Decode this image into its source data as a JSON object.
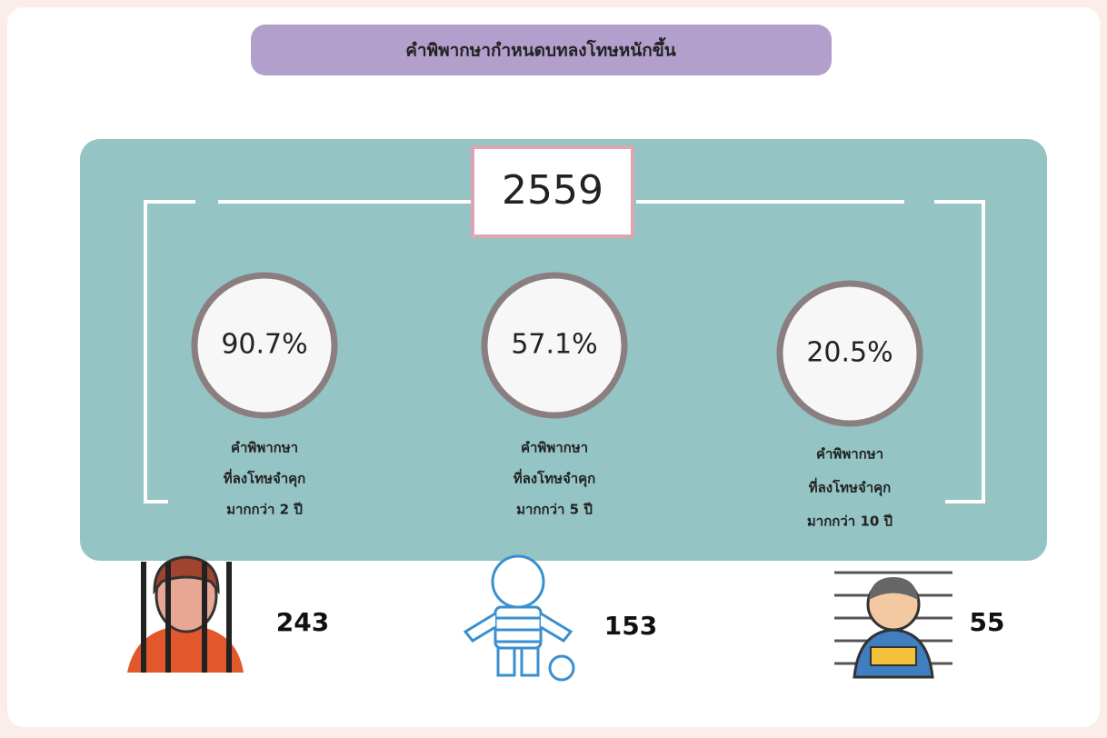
{
  "header": {
    "title": "คำพิพากษากำหนดบทลงโทษหนักขึ้น"
  },
  "year": "2559",
  "items": [
    {
      "percent": "90.7%",
      "caption": [
        "คำพิพากษา",
        "ที่ลงโทษจำคุก",
        "มากกว่า 2 ปี"
      ],
      "count": "243"
    },
    {
      "percent": "57.1%",
      "caption": [
        "คำพิพากษา",
        "ที่ลงโทษจำคุก",
        "มากกว่า 5 ปี"
      ],
      "count": "153"
    },
    {
      "percent": "20.5%",
      "caption": [
        "คำพิพากษา",
        "ที่ลงโทษจำคุก",
        "มากกว่า 10 ปี"
      ],
      "count": "55"
    }
  ]
}
